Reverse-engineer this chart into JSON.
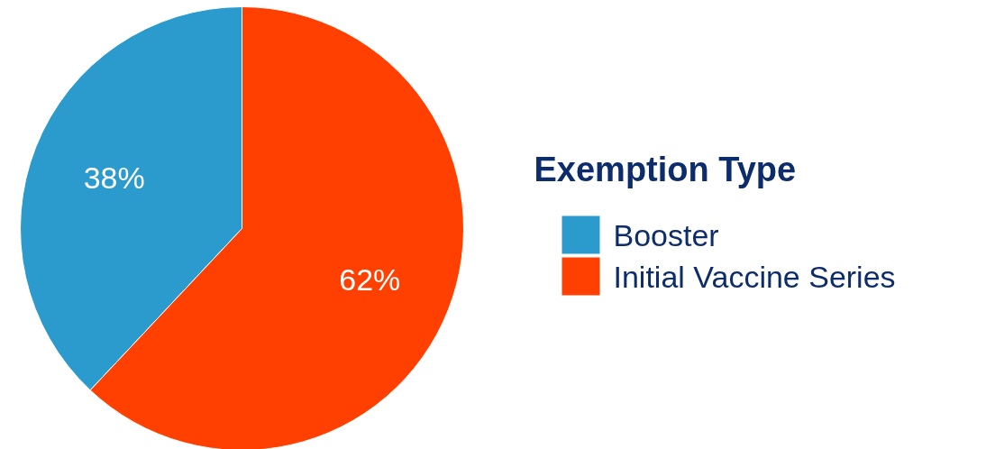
{
  "chart_data": {
    "type": "pie",
    "categories": [
      "Booster",
      "Initial Vaccine Series"
    ],
    "values": [
      38,
      62
    ],
    "colors": [
      "#2b9acd",
      "#ff4000"
    ],
    "value_labels": [
      "38%",
      "62%"
    ],
    "legend_title": "Exemption Type",
    "legend": "right"
  }
}
